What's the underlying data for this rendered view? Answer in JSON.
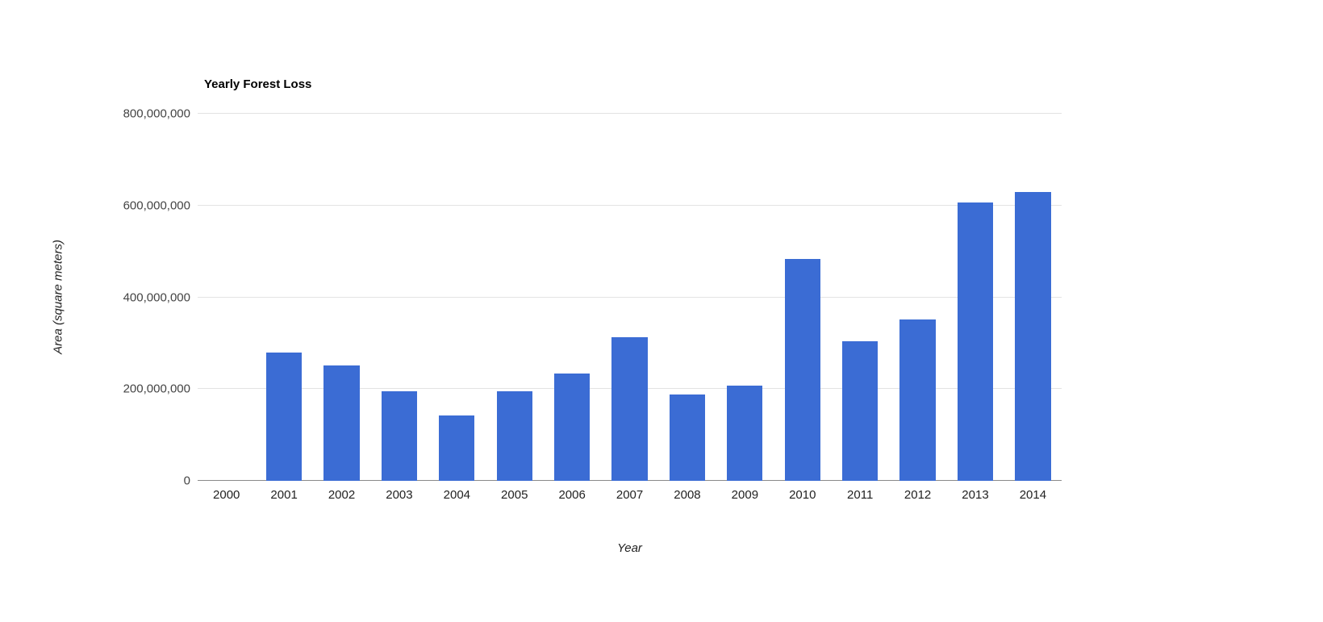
{
  "chart_data": {
    "type": "bar",
    "title": "Yearly Forest Loss",
    "xlabel": "Year",
    "ylabel": "Area (square meters)",
    "categories": [
      "2000",
      "2001",
      "2002",
      "2003",
      "2004",
      "2005",
      "2006",
      "2007",
      "2008",
      "2009",
      "2010",
      "2011",
      "2012",
      "2013",
      "2014"
    ],
    "values": [
      0,
      280000000,
      251000000,
      196000000,
      143000000,
      196000000,
      233000000,
      313000000,
      188000000,
      208000000,
      483000000,
      304000000,
      352000000,
      607000000,
      629000000
    ],
    "ylim": [
      0,
      800000000
    ],
    "yticks": {
      "values": [
        0,
        200000000,
        400000000,
        600000000,
        800000000
      ],
      "labels": [
        "0",
        "200,000,000",
        "400,000,000",
        "600,000,000",
        "800,000,000"
      ]
    },
    "grid": "on",
    "legend": "none",
    "bar_color": "#3b6cd4",
    "gridline_color": "#e3e3e3",
    "baseline_color": "#8a8a8a"
  }
}
